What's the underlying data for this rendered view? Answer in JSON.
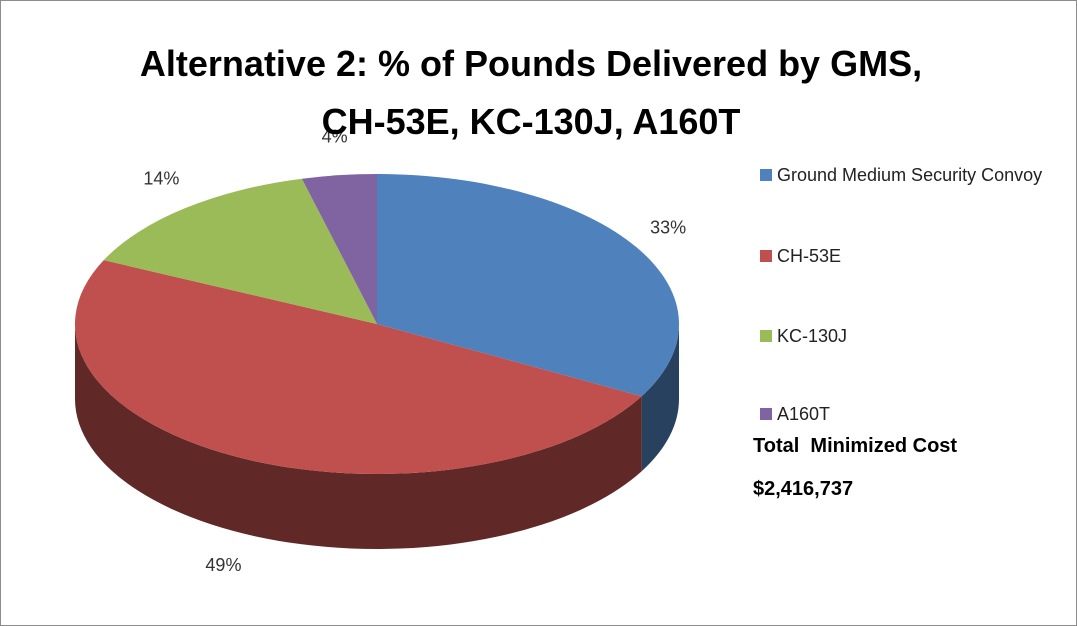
{
  "chart_data": {
    "type": "pie",
    "title": "Alternative 2: % of Pounds Delivered by GMS, CH-53E, KC-130J, A160T",
    "categories": [
      "Ground Medium Security Convoy",
      "CH-53E",
      "KC-130J",
      "A160T"
    ],
    "values": [
      33,
      49,
      14,
      4
    ],
    "value_labels": [
      "33%",
      "49%",
      "14%",
      "4%"
    ],
    "colors": [
      "#4f81bd",
      "#c0504d",
      "#9bbb59",
      "#8064a2"
    ],
    "legend": "right",
    "annotations": [
      "Total  Minimized Cost",
      "$2,416,737"
    ]
  }
}
